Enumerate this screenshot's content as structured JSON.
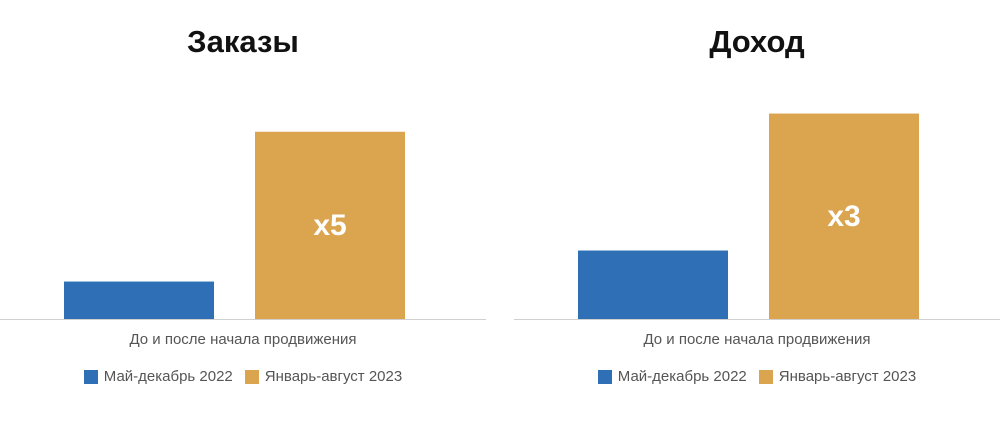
{
  "chart_data": [
    {
      "type": "bar",
      "title": "Заказы",
      "xlabel": "До и после начала продвижения",
      "ylabel": "",
      "categories": [
        "До и после начала продвижения"
      ],
      "ylim": [
        0,
        200
      ],
      "series": [
        {
          "name": "Май-декабрь 2022",
          "values": [
            35
          ],
          "color": "#2e6fb5"
        },
        {
          "name": "Январь-август 2023",
          "values": [
            175
          ],
          "color": "#dba44e",
          "data_label": "x5"
        }
      ],
      "legend": "bottom",
      "grid": false
    },
    {
      "type": "bar",
      "title": "Доход",
      "xlabel": "До и после начала продвижения",
      "ylabel": "",
      "categories": [
        "До и после начала продвижения"
      ],
      "ylim": [
        0,
        200
      ],
      "series": [
        {
          "name": "Май-декабрь 2022",
          "values": [
            64
          ],
          "color": "#2e6fb5"
        },
        {
          "name": "Январь-август 2023",
          "values": [
            192
          ],
          "color": "#dba44e",
          "data_label": "x3"
        }
      ],
      "legend": "bottom",
      "grid": false
    }
  ]
}
